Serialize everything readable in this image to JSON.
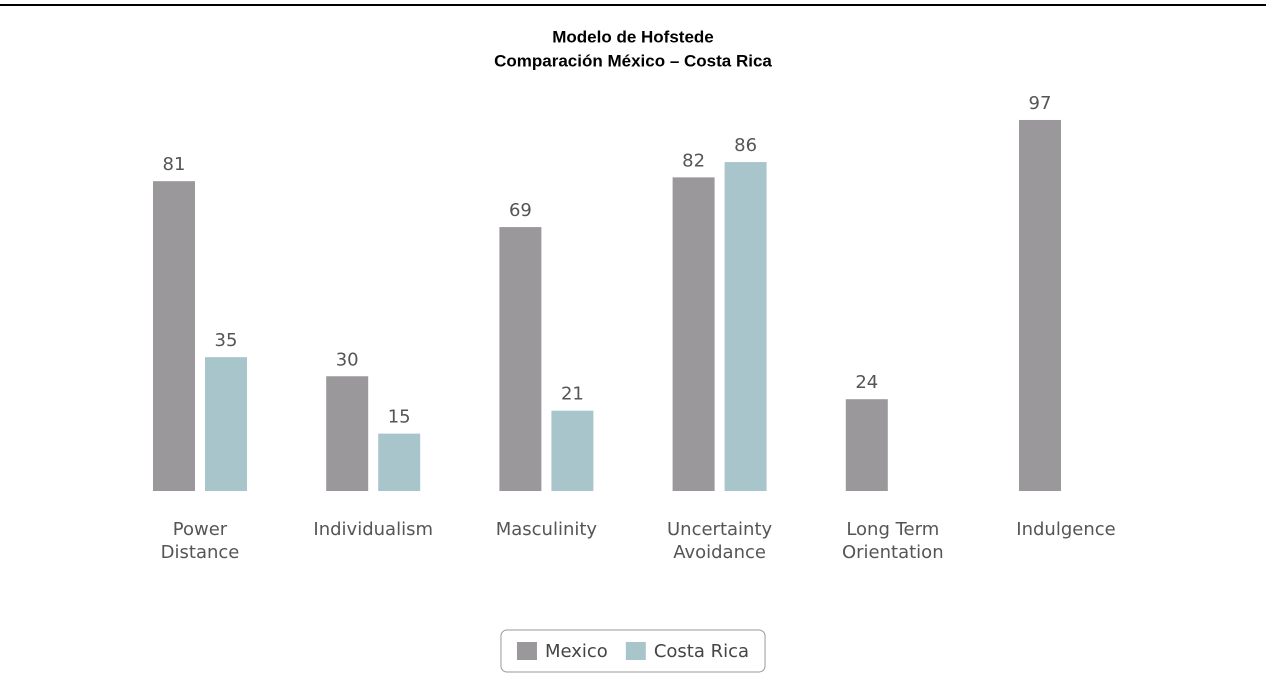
{
  "chart_data": {
    "type": "bar",
    "title": "Modelo de Hofstede",
    "subtitle": "Comparación México – Costa Rica",
    "categories": [
      "Power Distance",
      "Individualism",
      "Masculinity",
      "Uncertainty Avoidance",
      "Long Term Orientation",
      "Indulgence"
    ],
    "series": [
      {
        "name": "Mexico",
        "color": "#9a989b",
        "values": [
          81,
          30,
          69,
          82,
          24,
          97
        ]
      },
      {
        "name": "Costa Rica",
        "color": "#a9c5cc",
        "values": [
          35,
          15,
          21,
          86,
          null,
          null
        ]
      }
    ],
    "ylim": [
      0,
      100
    ],
    "legend": "bottom"
  }
}
